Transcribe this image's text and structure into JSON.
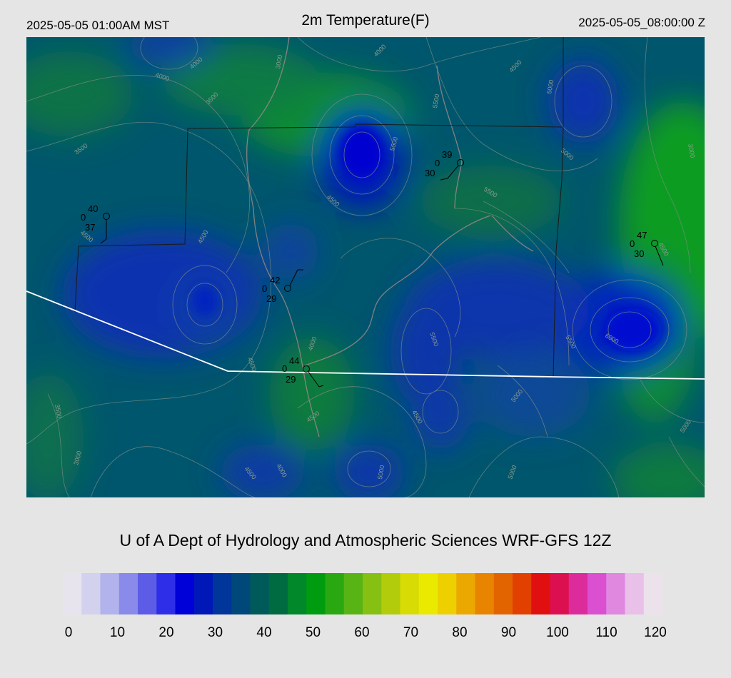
{
  "header": {
    "local_time": "2025-05-05 01:00AM MST",
    "title": "2m Temperature(F)",
    "utc_time": "2025-05-05_08:00:00 Z"
  },
  "credit": "U of A Dept of Hydrology and Atmospheric Sciences WRF-GFS 12Z",
  "colorbar": {
    "ticks": [
      "0",
      "10",
      "20",
      "30",
      "40",
      "50",
      "60",
      "70",
      "80",
      "90",
      "100",
      "110",
      "120"
    ],
    "colors": [
      "#e8e4ee",
      "#d2d2ee",
      "#b2b2ec",
      "#8a8aea",
      "#5c5ce6",
      "#2e2ee8",
      "#0000d8",
      "#0018b8",
      "#00359a",
      "#00487a",
      "#005a5a",
      "#006a40",
      "#00882a",
      "#009c10",
      "#2aa812",
      "#58b414",
      "#86c012",
      "#b2cc0c",
      "#d8dc04",
      "#eaea00",
      "#eed000",
      "#eaa800",
      "#e88400",
      "#e26400",
      "#e24000",
      "#e01010",
      "#dc1050",
      "#dc2c9c",
      "#da50d0",
      "#e088e0",
      "#e8c0e8",
      "#ece2ec"
    ]
  },
  "stations": [
    {
      "name": "station-west",
      "temp": "40",
      "dew": "37",
      "cloud": "0"
    },
    {
      "name": "station-north",
      "temp": "39",
      "dew": "30",
      "cloud": "0"
    },
    {
      "name": "station-central",
      "temp": "42",
      "dew": "29",
      "cloud": "0"
    },
    {
      "name": "station-south",
      "temp": "44",
      "dew": "29",
      "cloud": "0"
    },
    {
      "name": "station-east",
      "temp": "47",
      "dew": "30",
      "cloud": "0"
    }
  ],
  "contour_labels": [
    "4000",
    "4000",
    "4500",
    "5000",
    "5000",
    "3500",
    "3500",
    "3000",
    "5500",
    "5500",
    "4500",
    "4500",
    "4500",
    "5500",
    "5500",
    "6000",
    "5500",
    "4500",
    "4500",
    "4500",
    "5000",
    "5000",
    "5000",
    "3500",
    "3000",
    "4500",
    "4000",
    "5000",
    "4500",
    "4000",
    "3000",
    "4000"
  ],
  "legend_colors": {
    "map_base": "#00556a",
    "cold": "#0028b0",
    "warm": "#0a9a2a"
  }
}
